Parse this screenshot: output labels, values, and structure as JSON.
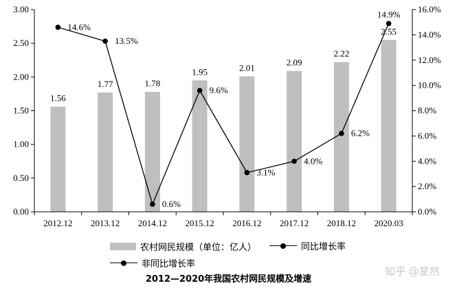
{
  "chart_data": {
    "type": "bar",
    "categories": [
      "2012.12",
      "2013.12",
      "2014.12",
      "2015.12",
      "2016.12",
      "2017.12",
      "2018.12",
      "2020.03"
    ],
    "series": [
      {
        "name": "农村网民规模（单位：亿人）",
        "type": "bar",
        "axis": "left",
        "values": [
          1.56,
          1.77,
          1.78,
          1.95,
          2.01,
          2.09,
          2.22,
          2.55
        ],
        "labels": [
          "1.56",
          "1.77",
          "1.78",
          "1.95",
          "2.01",
          "2.09",
          "2.22",
          "2.55"
        ],
        "color": "#bfbfbf"
      },
      {
        "name": "同比增长率",
        "type": "line",
        "axis": "right",
        "values": [
          14.6,
          13.5,
          0.6,
          9.6,
          3.1,
          4.0,
          6.2,
          14.9
        ],
        "labels": [
          "14.6%",
          "13.5%",
          "0.6%",
          "9.6%",
          "3.1%",
          "4.0%",
          "6.2%",
          "14.9%"
        ],
        "color": "#000000"
      }
    ],
    "legend_extra": "非同比增长率",
    "left_axis": {
      "ylim": [
        0,
        3
      ],
      "ticks": [
        "0.00",
        "0.50",
        "1.00",
        "1.50",
        "2.00",
        "2.50",
        "3.00"
      ]
    },
    "right_axis": {
      "ylim": [
        0,
        16
      ],
      "ticks": [
        "0.0%",
        "2.0%",
        "4.0%",
        "6.0%",
        "8.0%",
        "10.0%",
        "12.0%",
        "14.0%",
        "16.0%"
      ]
    },
    "title": "2012—2020年我国农村网民规模及增速",
    "grid": false,
    "legend_position": "bottom"
  },
  "watermark": "知乎 @星然"
}
